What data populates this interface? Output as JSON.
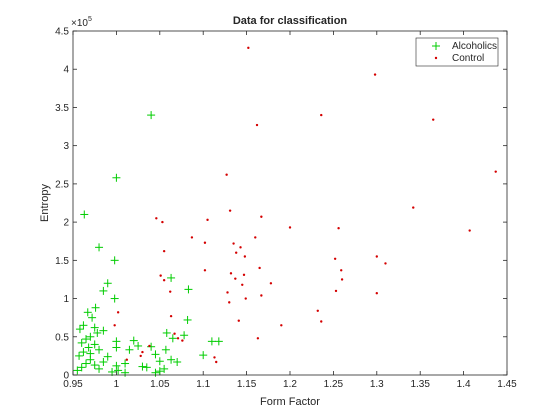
{
  "chart_data": {
    "type": "scatter",
    "title": "Data for classification",
    "xlabel": "Form Factor",
    "ylabel": "Entropy",
    "xlim": [
      0.95,
      1.45
    ],
    "ylim": [
      0,
      450000
    ],
    "x_ticks": [
      "0.95",
      "1",
      "1.05",
      "1.1",
      "1.15",
      "1.2",
      "1.25",
      "1.3",
      "1.35",
      "1.4",
      "1.45"
    ],
    "x_tick_values": [
      0.95,
      1.0,
      1.05,
      1.1,
      1.15,
      1.2,
      1.25,
      1.3,
      1.35,
      1.4,
      1.45
    ],
    "y_ticks": [
      "0",
      "0.5",
      "1",
      "1.5",
      "2",
      "2.5",
      "3",
      "3.5",
      "4",
      "4.5"
    ],
    "y_tick_values": [
      0,
      50000,
      100000,
      150000,
      200000,
      250000,
      300000,
      350000,
      400000,
      450000
    ],
    "y_exponent_base": "×10",
    "y_exponent_power": "5",
    "grid": false,
    "legend_position": "top-right",
    "colors": {
      "Alcoholics": "#00cc00",
      "Control": "#d40000"
    },
    "series": [
      {
        "name": "Alcoholics",
        "marker": "plus",
        "points": [
          [
            1.04,
            340000
          ],
          [
            1.0,
            258000
          ],
          [
            0.963,
            210000
          ],
          [
            0.98,
            167000
          ],
          [
            0.998,
            150000
          ],
          [
            0.99,
            120000
          ],
          [
            0.985,
            110000
          ],
          [
            1.063,
            127000
          ],
          [
            1.083,
            112000
          ],
          [
            0.998,
            100000
          ],
          [
            0.976,
            88000
          ],
          [
            0.967,
            82000
          ],
          [
            0.972,
            75000
          ],
          [
            0.962,
            65000
          ],
          [
            0.958,
            60000
          ],
          [
            0.985,
            58000
          ],
          [
            0.978,
            55000
          ],
          [
            0.97,
            50000
          ],
          [
            0.965,
            47000
          ],
          [
            0.96,
            42000
          ],
          [
            0.975,
            40000
          ],
          [
            0.968,
            36000
          ],
          [
            0.98,
            33000
          ],
          [
            0.962,
            30000
          ],
          [
            0.957,
            25000
          ],
          [
            0.97,
            20000
          ],
          [
            0.985,
            17000
          ],
          [
            0.975,
            13000
          ],
          [
            0.96,
            10000
          ],
          [
            0.955,
            6000
          ],
          [
            0.965,
            15000
          ],
          [
            0.98,
            8000
          ],
          [
            1.0,
            44000
          ],
          [
            1.0,
            36000
          ],
          [
            1.002,
            6000
          ],
          [
            1.01,
            3000
          ],
          [
            1.015,
            33000
          ],
          [
            1.02,
            45000
          ],
          [
            1.025,
            38000
          ],
          [
            1.035,
            10000
          ],
          [
            1.04,
            37000
          ],
          [
            1.045,
            27000
          ],
          [
            1.05,
            18000
          ],
          [
            1.05,
            5000
          ],
          [
            1.057,
            33000
          ],
          [
            1.058,
            55000
          ],
          [
            1.065,
            48000
          ],
          [
            1.063,
            20000
          ],
          [
            1.07,
            17000
          ],
          [
            1.078,
            52000
          ],
          [
            1.082,
            72000
          ],
          [
            1.1,
            26000
          ],
          [
            1.11,
            44000
          ],
          [
            1.118,
            44000
          ],
          [
            1.055,
            8000
          ],
          [
            1.045,
            3000
          ],
          [
            1.03,
            11000
          ],
          [
            1.01,
            15000
          ],
          [
            1.0,
            12000
          ],
          [
            0.995,
            4000
          ],
          [
            0.99,
            24000
          ],
          [
            0.97,
            28000
          ],
          [
            0.975,
            62000
          ]
        ]
      },
      {
        "name": "Control",
        "marker": "dot",
        "points": [
          [
            1.152,
            428000
          ],
          [
            1.298,
            393000
          ],
          [
            1.162,
            327000
          ],
          [
            1.236,
            340000
          ],
          [
            1.365,
            334000
          ],
          [
            1.437,
            266000
          ],
          [
            1.127,
            262000
          ],
          [
            1.131,
            215000
          ],
          [
            1.046,
            205000
          ],
          [
            1.053,
            200000
          ],
          [
            1.105,
            203000
          ],
          [
            1.167,
            207000
          ],
          [
            1.342,
            219000
          ],
          [
            1.2,
            193000
          ],
          [
            1.256,
            192000
          ],
          [
            1.407,
            189000
          ],
          [
            1.087,
            180000
          ],
          [
            1.135,
            172000
          ],
          [
            1.143,
            167000
          ],
          [
            1.16,
            180000
          ],
          [
            1.102,
            173000
          ],
          [
            1.138,
            160000
          ],
          [
            1.148,
            155000
          ],
          [
            1.055,
            162000
          ],
          [
            1.252,
            152000
          ],
          [
            1.3,
            155000
          ],
          [
            1.31,
            146000
          ],
          [
            1.102,
            137000
          ],
          [
            1.132,
            133000
          ],
          [
            1.137,
            126000
          ],
          [
            1.147,
            131000
          ],
          [
            1.165,
            140000
          ],
          [
            1.178,
            120000
          ],
          [
            1.259,
            137000
          ],
          [
            1.26,
            125000
          ],
          [
            1.051,
            130000
          ],
          [
            1.055,
            124000
          ],
          [
            1.062,
            109000
          ],
          [
            1.145,
            118000
          ],
          [
            1.128,
            108000
          ],
          [
            1.149,
            100000
          ],
          [
            1.253,
            110000
          ],
          [
            1.3,
            107000
          ],
          [
            1.13,
            95000
          ],
          [
            1.167,
            104000
          ],
          [
            1.232,
            84000
          ],
          [
            1.236,
            70000
          ],
          [
            1.141,
            71000
          ],
          [
            1.19,
            65000
          ],
          [
            1.163,
            48000
          ],
          [
            1.113,
            23000
          ],
          [
            1.115,
            17000
          ],
          [
            1.002,
            82000
          ],
          [
            0.998,
            65000
          ],
          [
            1.067,
            54000
          ],
          [
            1.071,
            48000
          ],
          [
            1.076,
            45000
          ],
          [
            1.038,
            38000
          ],
          [
            1.03,
            30000
          ],
          [
            1.028,
            25000
          ],
          [
            1.012,
            20000
          ],
          [
            1.063,
            77000
          ]
        ]
      }
    ]
  }
}
